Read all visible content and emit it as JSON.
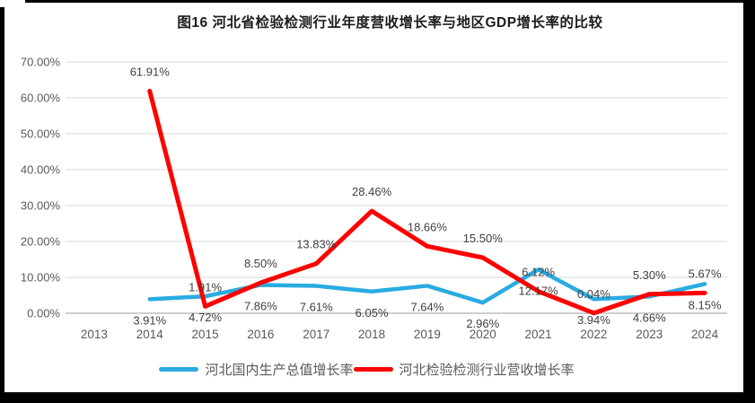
{
  "title": "图16 河北省检验检测行业年度营收增长率与地区GDP增长率的比较",
  "colors": {
    "gdp_line": "#29abe2",
    "revenue_line": "#fe0000",
    "gridline": "#d9d9d9",
    "axis_line": "#bfbfbf",
    "axis_text": "#595959",
    "data_label_text": "#404040",
    "frame": "#000000",
    "background": "#ffffff"
  },
  "y_axis": {
    "tick_labels": [
      "70.00%",
      "60.00%",
      "50.00%",
      "40.00%",
      "30.00%",
      "20.00%",
      "10.00%",
      "0.00%"
    ]
  },
  "x_axis": {
    "tick_labels": [
      "2013",
      "2014",
      "2015",
      "2016",
      "2017",
      "2018",
      "2019",
      "2020",
      "2021",
      "2022",
      "2023",
      "2024"
    ]
  },
  "legend": {
    "items": [
      {
        "label": "河北国内生产总值增长率",
        "color": "#29abe2"
      },
      {
        "label": "河北检验检测行业营收增长率",
        "color": "#fe0000"
      }
    ]
  },
  "chart_data": {
    "type": "line",
    "title": "图16 河北省检验检测行业年度营收增长率与地区GDP增长率的比较",
    "categories": [
      "2013",
      "2014",
      "2015",
      "2016",
      "2017",
      "2018",
      "2019",
      "2020",
      "2021",
      "2022",
      "2023",
      "2024"
    ],
    "ylim": [
      0,
      70
    ],
    "y_tick_step": 10,
    "y_tick_format": "percent_2dp",
    "grid": true,
    "legend_position": "bottom",
    "series": [
      {
        "name": "河北国内生产总值增长率",
        "color": "#29abe2",
        "label_position": "below",
        "values": [
          null,
          3.91,
          4.72,
          7.86,
          7.61,
          6.05,
          7.64,
          2.96,
          12.17,
          3.94,
          4.66,
          8.15
        ],
        "labels": [
          "",
          "3.91%",
          "4.72%",
          "7.86%",
          "7.61%",
          "6.05%",
          "7.64%",
          "2.96%",
          "12.17%",
          "3.94%",
          "4.66%",
          "8.15%"
        ]
      },
      {
        "name": "河北检验检测行业营收增长率",
        "color": "#fe0000",
        "label_position": "above",
        "values": [
          null,
          61.91,
          1.91,
          8.5,
          13.83,
          28.46,
          18.66,
          15.5,
          6.12,
          0.04,
          5.3,
          5.67
        ],
        "labels": [
          "",
          "61.91%",
          "1.91%",
          "8.50%",
          "13.83%",
          "28.46%",
          "18.66%",
          "15.50%",
          "6.12%",
          "0.04%",
          "5.30%",
          "5.67%"
        ]
      }
    ]
  }
}
